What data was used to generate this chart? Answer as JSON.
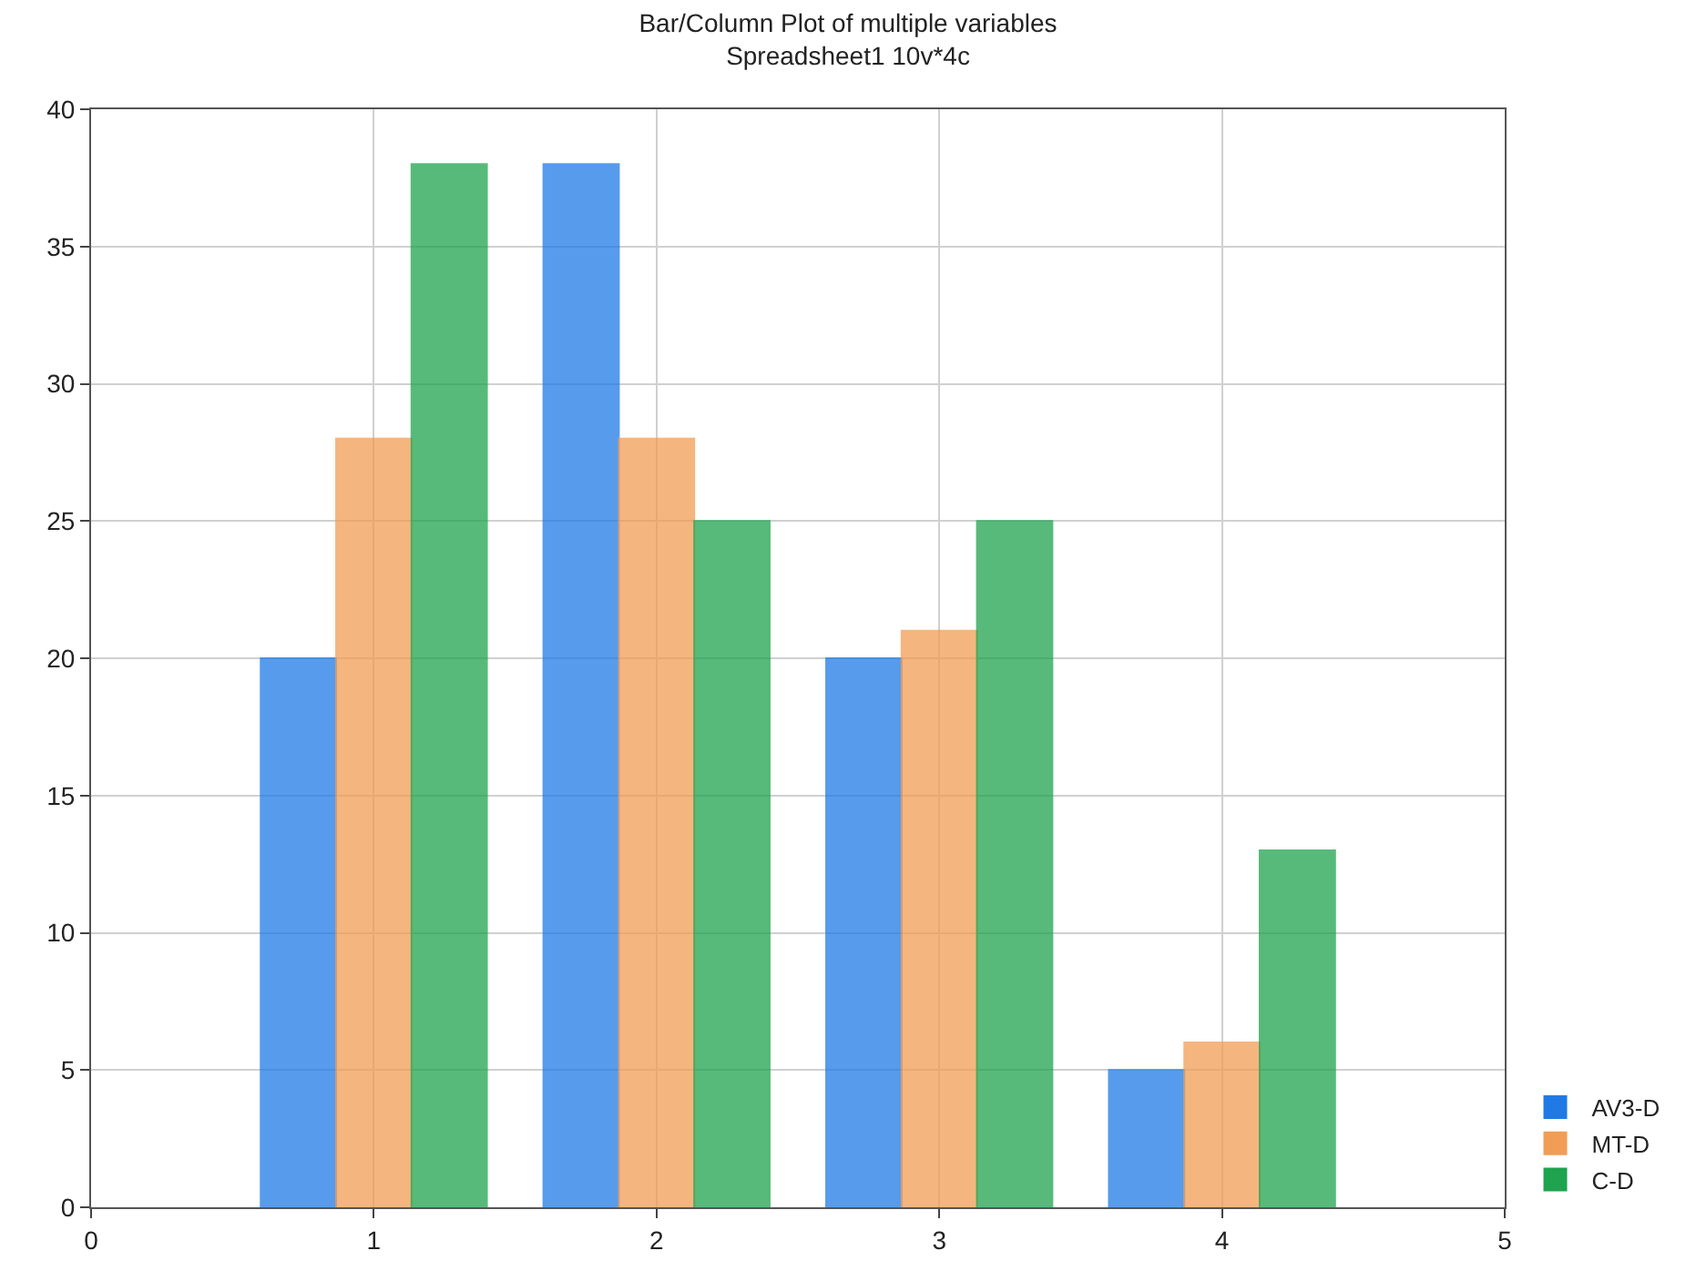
{
  "chart_data": {
    "type": "bar",
    "title": "Bar/Column Plot of multiple variables",
    "subtitle": "Spreadsheet1 10v*4c",
    "x": [
      1,
      2,
      3,
      4
    ],
    "series": [
      {
        "name": "AV3-D",
        "color": "#1f7ae6",
        "values": [
          20,
          38,
          20,
          5
        ]
      },
      {
        "name": "MT-D",
        "color": "#f29d55",
        "values": [
          28,
          28,
          21,
          6
        ]
      },
      {
        "name": "C-D",
        "color": "#1fa34f",
        "values": [
          38,
          25,
          25,
          13
        ]
      }
    ],
    "xlim": [
      0,
      5
    ],
    "xticks": [
      0,
      1,
      2,
      3,
      4,
      5
    ],
    "ylim": [
      0,
      40
    ],
    "yticks": [
      0,
      5,
      10,
      15,
      20,
      25,
      30,
      35,
      40
    ],
    "grid": true,
    "legend": "bottom right"
  }
}
